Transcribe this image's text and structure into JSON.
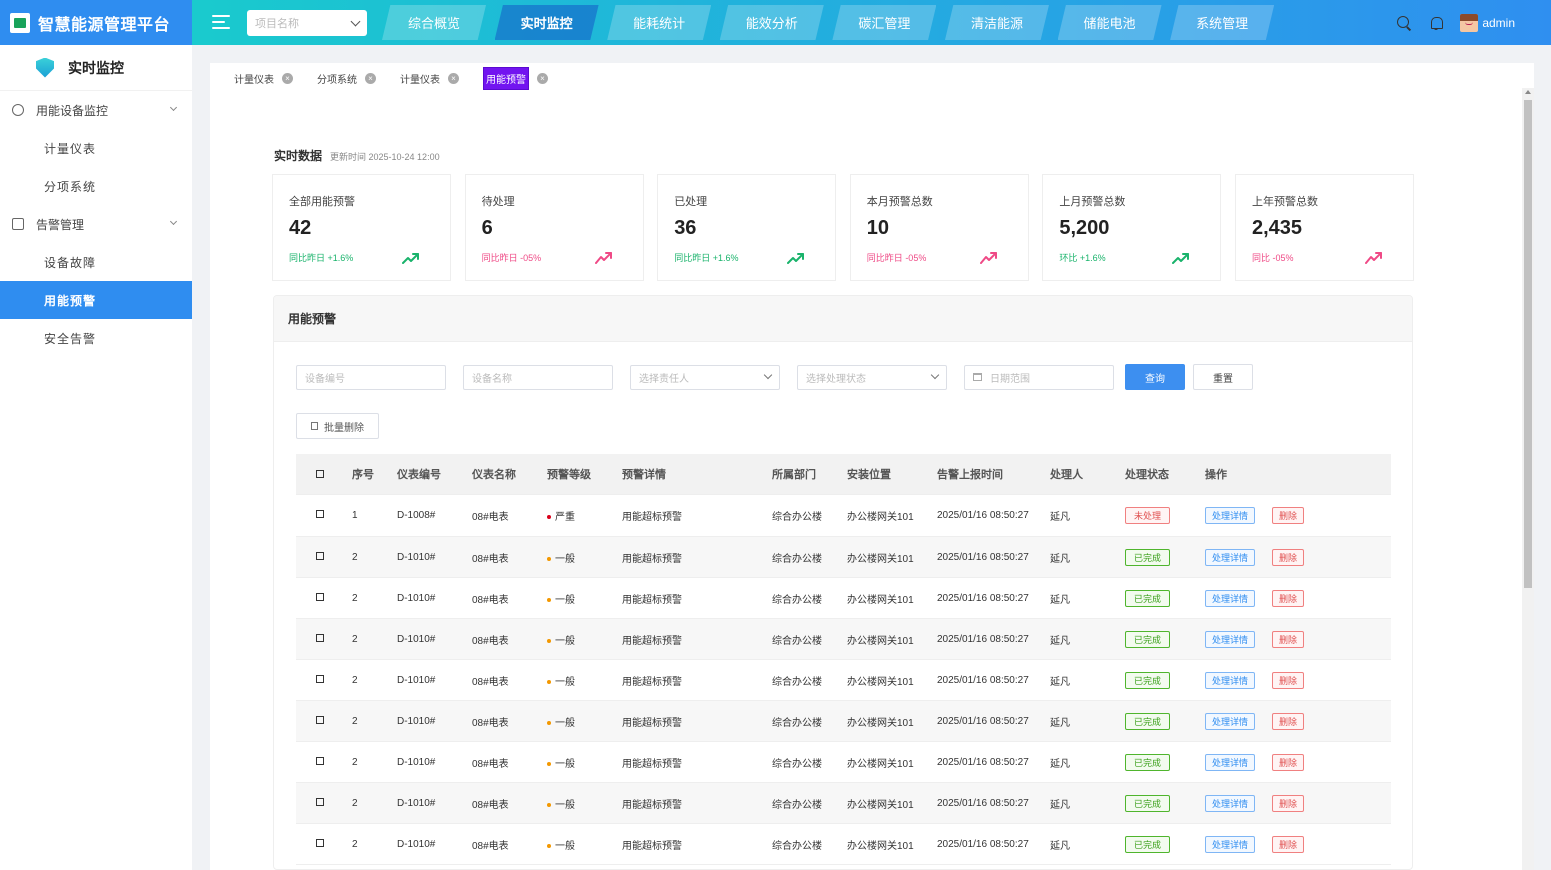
{
  "app": {
    "title": "智慧能源管理平台",
    "project_placeholder": "项目名称",
    "user": "admin"
  },
  "nav": [
    {
      "label": "综合概览",
      "active": false
    },
    {
      "label": "实时监控",
      "active": true
    },
    {
      "label": "能耗统计",
      "active": false
    },
    {
      "label": "能效分析",
      "active": false
    },
    {
      "label": "碳汇管理",
      "active": false
    },
    {
      "label": "清洁能源",
      "active": false
    },
    {
      "label": "储能电池",
      "active": false
    },
    {
      "label": "系统管理",
      "active": false
    }
  ],
  "sidebar": {
    "title": "实时监控",
    "groups": [
      {
        "label": "用能设备监控",
        "icon": "bulb-icon",
        "items": [
          {
            "label": "计量仪表"
          },
          {
            "label": "分项系统"
          }
        ]
      },
      {
        "label": "告警管理",
        "icon": "alarm-icon",
        "items": [
          {
            "label": "设备故障"
          },
          {
            "label": "用能预警",
            "active": true
          },
          {
            "label": "安全告警"
          }
        ]
      }
    ]
  },
  "tabs": [
    {
      "label": "计量仪表",
      "active": false
    },
    {
      "label": "分项系统",
      "active": false
    },
    {
      "label": "计量仪表",
      "active": false
    },
    {
      "label": "用能预警",
      "active": true
    }
  ],
  "realtime": {
    "title": "实时数据",
    "updated": "更新时间 2025-10-24  12:00"
  },
  "stats": [
    {
      "label": "全部用能预警",
      "value": "42",
      "cmp_label": "同比昨日",
      "cmp_value": "+1.6%",
      "trend": "up"
    },
    {
      "label": "待处理",
      "value": "6",
      "cmp_label": "同比昨日",
      "cmp_value": "-05%",
      "trend": "down"
    },
    {
      "label": "已处理",
      "value": "36",
      "cmp_label": "同比昨日",
      "cmp_value": "+1.6%",
      "trend": "up"
    },
    {
      "label": "本月预警总数",
      "value": "10",
      "cmp_label": "同比昨日",
      "cmp_value": "-05%",
      "trend": "down"
    },
    {
      "label": "上月预警总数",
      "value": "5,200",
      "cmp_label": "环比",
      "cmp_value": "+1.6%",
      "trend": "up"
    },
    {
      "label": "上年预警总数",
      "value": "2,435",
      "cmp_label": "同比",
      "cmp_value": "-05%",
      "trend": "down"
    }
  ],
  "colors": {
    "up": "#19b36b",
    "down": "#ef4a86",
    "primary": "#2f8df0"
  },
  "panel": {
    "title": "用能预警",
    "filters": {
      "device_no": "设备编号",
      "device_name": "设备名称",
      "owner": "选择责任人",
      "status": "选择处理状态",
      "date": "日期范围"
    },
    "query_btn": "查询",
    "reset_btn": "重置",
    "batch_delete": "批量删除"
  },
  "table": {
    "headers": [
      "序号",
      "仪表编号",
      "仪表名称",
      "预警等级",
      "预警详情",
      "所属部门",
      "安装位置",
      "告警上报时间",
      "处理人",
      "处理状态",
      "操作"
    ],
    "detail_btn": "处理详情",
    "delete_btn": "删除",
    "rows": [
      {
        "no": "1",
        "code": "D-1008#",
        "name": "08#电表",
        "level": "严重",
        "level_color": "red",
        "detail": "用能超标预警",
        "dept": "综合办公楼",
        "location": "办公楼网关101",
        "time": "2025/01/16 08:50:27",
        "handler": "延凡",
        "status": "未处理",
        "status_type": "pending"
      },
      {
        "no": "2",
        "code": "D-1010#",
        "name": "08#电表",
        "level": "一般",
        "level_color": "orange",
        "detail": "用能超标预警",
        "dept": "综合办公楼",
        "location": "办公楼网关101",
        "time": "2025/01/16 08:50:27",
        "handler": "延凡",
        "status": "已完成",
        "status_type": "done"
      },
      {
        "no": "2",
        "code": "D-1010#",
        "name": "08#电表",
        "level": "一般",
        "level_color": "orange",
        "detail": "用能超标预警",
        "dept": "综合办公楼",
        "location": "办公楼网关101",
        "time": "2025/01/16 08:50:27",
        "handler": "延凡",
        "status": "已完成",
        "status_type": "done"
      },
      {
        "no": "2",
        "code": "D-1010#",
        "name": "08#电表",
        "level": "一般",
        "level_color": "orange",
        "detail": "用能超标预警",
        "dept": "综合办公楼",
        "location": "办公楼网关101",
        "time": "2025/01/16 08:50:27",
        "handler": "延凡",
        "status": "已完成",
        "status_type": "done"
      },
      {
        "no": "2",
        "code": "D-1010#",
        "name": "08#电表",
        "level": "一般",
        "level_color": "orange",
        "detail": "用能超标预警",
        "dept": "综合办公楼",
        "location": "办公楼网关101",
        "time": "2025/01/16 08:50:27",
        "handler": "延凡",
        "status": "已完成",
        "status_type": "done"
      },
      {
        "no": "2",
        "code": "D-1010#",
        "name": "08#电表",
        "level": "一般",
        "level_color": "orange",
        "detail": "用能超标预警",
        "dept": "综合办公楼",
        "location": "办公楼网关101",
        "time": "2025/01/16 08:50:27",
        "handler": "延凡",
        "status": "已完成",
        "status_type": "done"
      },
      {
        "no": "2",
        "code": "D-1010#",
        "name": "08#电表",
        "level": "一般",
        "level_color": "orange",
        "detail": "用能超标预警",
        "dept": "综合办公楼",
        "location": "办公楼网关101",
        "time": "2025/01/16 08:50:27",
        "handler": "延凡",
        "status": "已完成",
        "status_type": "done"
      },
      {
        "no": "2",
        "code": "D-1010#",
        "name": "08#电表",
        "level": "一般",
        "level_color": "orange",
        "detail": "用能超标预警",
        "dept": "综合办公楼",
        "location": "办公楼网关101",
        "time": "2025/01/16 08:50:27",
        "handler": "延凡",
        "status": "已完成",
        "status_type": "done"
      },
      {
        "no": "2",
        "code": "D-1010#",
        "name": "08#电表",
        "level": "一般",
        "level_color": "orange",
        "detail": "用能超标预警",
        "dept": "综合办公楼",
        "location": "办公楼网关101",
        "time": "2025/01/16 08:50:27",
        "handler": "延凡",
        "status": "已完成",
        "status_type": "done"
      }
    ]
  }
}
